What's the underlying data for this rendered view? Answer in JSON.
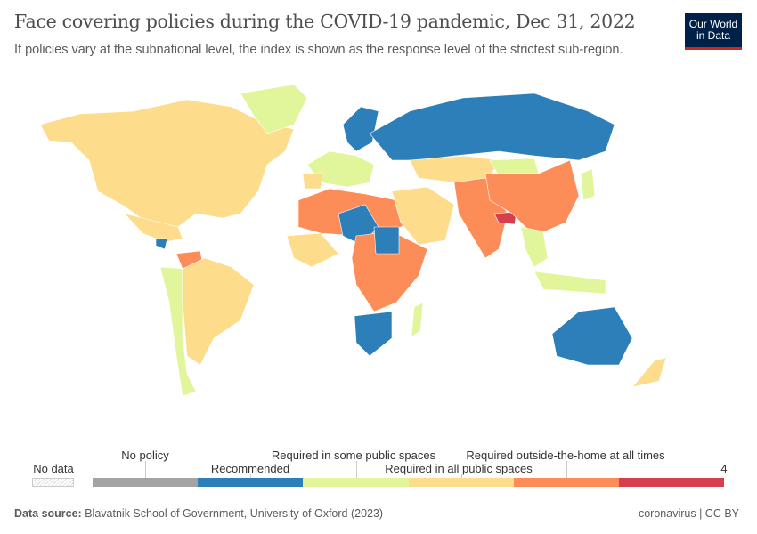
{
  "header": {
    "title": "Face covering policies during the COVID-19 pandemic, Dec 31, 2022",
    "subtitle": "If policies vary at the subnational level, the index is shown as the response level of the strictest sub-region.",
    "logo": "Our World in Data"
  },
  "legend": {
    "no_data": "No data",
    "no_data_color": "#ffffff",
    "bins": [
      {
        "label": "No policy",
        "color": "#a3a3a3"
      },
      {
        "label": "Recommended",
        "color": "#2c7fb8"
      },
      {
        "label": "Required in some public spaces",
        "color": "#e1f59a"
      },
      {
        "label": "Required in all public spaces",
        "color": "#fddc8c"
      },
      {
        "label": "Required outside-the-home at all times",
        "color": "#fc8d59"
      },
      {
        "label": "",
        "color": "#d73f4e"
      }
    ],
    "max_label": "4"
  },
  "footer": {
    "source_label": "Data source:",
    "source": "Blavatnik School of Government, University of Oxford (2023)",
    "license": "coronavirus | CC BY"
  }
}
